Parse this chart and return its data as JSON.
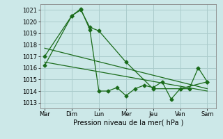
{
  "background_color": "#cce8e8",
  "grid_color": "#aacccc",
  "line_color": "#1a6b1a",
  "title": "Pression niveau de la mer( hPa )",
  "ylabel_values": [
    1013,
    1014,
    1015,
    1016,
    1017,
    1018,
    1019,
    1020,
    1021
  ],
  "x_labels": [
    "Mar",
    "Dim",
    "Lun",
    "Mer",
    "Jeu",
    "Ven",
    "Sam"
  ],
  "x_ticks": [
    0,
    6,
    12,
    18,
    24,
    30,
    36
  ],
  "ylim": [
    1012.5,
    1021.5
  ],
  "xlim": [
    -1,
    38
  ],
  "series1_x": [
    0,
    6,
    8,
    10,
    12,
    18,
    24,
    30,
    36
  ],
  "series1_y": [
    1017.0,
    1020.5,
    1021.0,
    1019.5,
    1019.2,
    1016.5,
    1014.2,
    1014.2,
    1014.8
  ],
  "series2_x": [
    0,
    6,
    8,
    10,
    12,
    14,
    16,
    18,
    20,
    22,
    24,
    26,
    28,
    30,
    32,
    34,
    36
  ],
  "series2_y": [
    1016.2,
    1020.5,
    1021.1,
    1019.3,
    1014.0,
    1014.0,
    1014.3,
    1013.6,
    1014.2,
    1014.5,
    1014.3,
    1014.8,
    1013.3,
    1014.2,
    1014.2,
    1016.0,
    1014.8
  ],
  "series3_x": [
    0,
    36
  ],
  "series3_y": [
    1017.7,
    1014.2
  ],
  "series4_x": [
    0,
    36
  ],
  "series4_y": [
    1016.5,
    1014.0
  ],
  "tick_fontsize": 6,
  "xlabel_fontsize": 7,
  "marker_size": 2.5,
  "line_width": 0.9
}
